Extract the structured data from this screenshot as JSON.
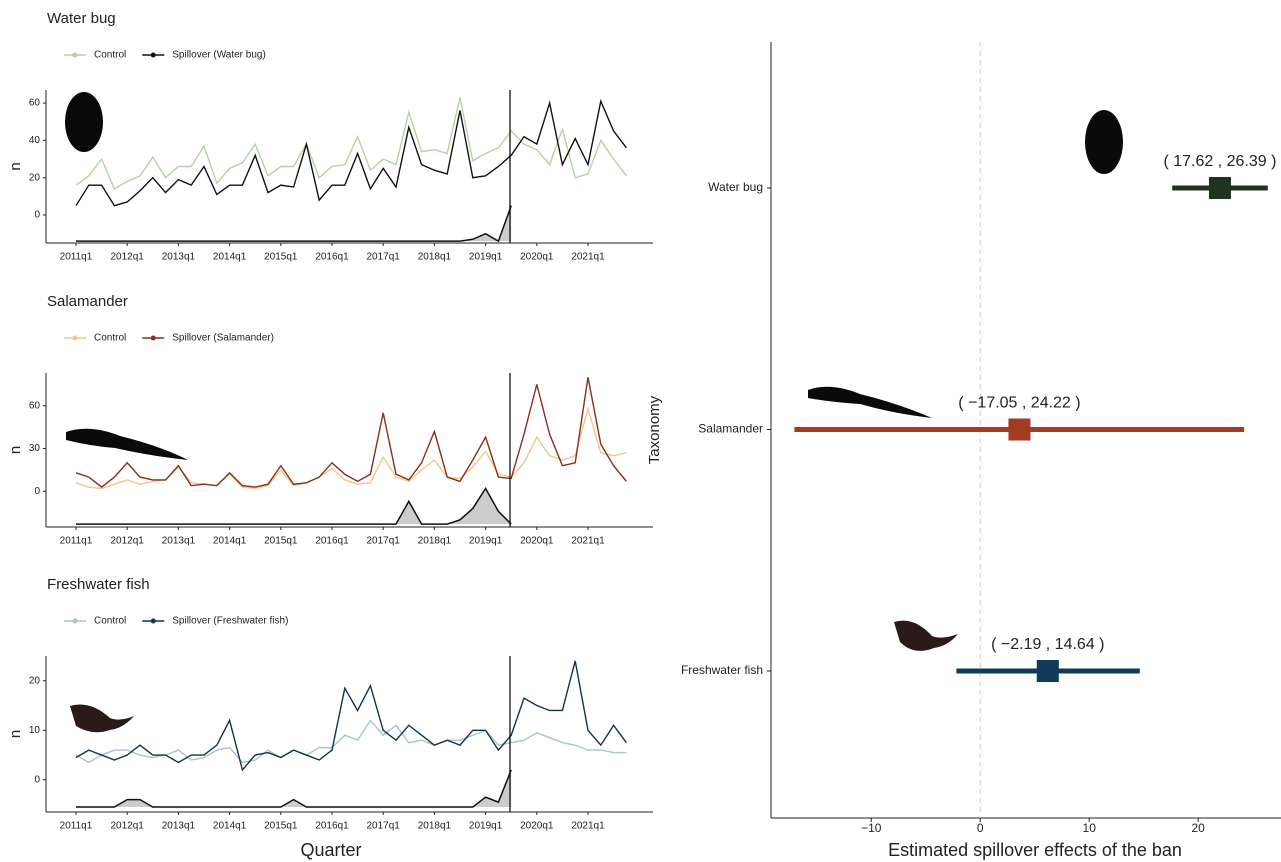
{
  "chart_data": [
    {
      "type": "line",
      "title": "Water bug",
      "y_label": "n",
      "categories": [
        "2011q1",
        null,
        null,
        null,
        "2012q1",
        null,
        null,
        null,
        "2013q1",
        null,
        null,
        null,
        "2014q1",
        null,
        null,
        null,
        "2015q1",
        null,
        null,
        null,
        "2016q1",
        null,
        null,
        null,
        "2017q1",
        null,
        null,
        null,
        "2018q1",
        null,
        null,
        null,
        "2019q1",
        null,
        null,
        null,
        "2020q1",
        null,
        null,
        null,
        "2021q1",
        null,
        null,
        null
      ],
      "series": [
        {
          "name": "Control",
          "color": "#b5d3a0",
          "values": [
            16,
            21,
            30,
            14,
            18,
            21,
            31,
            20,
            26,
            26,
            37,
            17,
            25,
            28,
            38,
            21,
            26,
            26,
            38,
            20,
            26,
            27,
            42,
            24,
            30,
            27,
            55,
            34,
            35,
            33,
            63,
            29,
            33,
            36,
            45,
            38,
            35,
            27,
            46,
            20,
            22,
            40,
            30,
            21
          ]
        },
        {
          "name": "Spillover (Water bug)",
          "color": "#111111",
          "values": [
            5,
            16,
            16,
            5,
            7,
            13,
            20,
            12,
            19,
            16,
            26,
            11,
            16,
            16,
            32,
            12,
            16,
            15,
            38,
            8,
            16,
            16,
            33,
            14,
            25,
            15,
            47,
            27,
            24,
            22,
            56,
            20,
            21,
            26,
            32,
            42,
            38,
            60,
            27,
            41,
            27,
            61,
            45,
            36
          ]
        }
      ],
      "area": {
        "color": "#cccccc",
        "values": [
          -14,
          -14,
          -14,
          -14,
          -14,
          -14,
          -14,
          -14,
          -14,
          -14,
          -14,
          -14,
          -14,
          -14,
          -14,
          -14,
          -14,
          -14,
          -14,
          -14,
          -14,
          -14,
          -14,
          -14,
          -14,
          -14,
          -14,
          -14,
          -14,
          -14,
          -14,
          -13,
          -10,
          -14,
          5,
          null,
          null,
          null,
          null,
          null,
          null,
          null,
          null,
          null
        ]
      },
      "ylim": [
        -15,
        67
      ],
      "yticks": [
        0,
        20,
        40,
        60
      ]
    },
    {
      "type": "line",
      "title": "Salamander",
      "y_label": "n",
      "categories": [
        "2011q1",
        null,
        null,
        null,
        "2012q1",
        null,
        null,
        null,
        "2013q1",
        null,
        null,
        null,
        "2014q1",
        null,
        null,
        null,
        "2015q1",
        null,
        null,
        null,
        "2016q1",
        null,
        null,
        null,
        "2017q1",
        null,
        null,
        null,
        "2018q1",
        null,
        null,
        null,
        "2019q1",
        null,
        null,
        null,
        "2020q1",
        null,
        null,
        null,
        "2021q1",
        null,
        null,
        null
      ],
      "series": [
        {
          "name": "Control",
          "color": "#f2c68f",
          "values": [
            6,
            3,
            2,
            5,
            8,
            5,
            7,
            8,
            17,
            6,
            5,
            4,
            12,
            3,
            2,
            4,
            15,
            4,
            6,
            10,
            16,
            8,
            5,
            6,
            24,
            10,
            7,
            15,
            22,
            10,
            9,
            17,
            28,
            12,
            10,
            20,
            38,
            25,
            22,
            25,
            58,
            27,
            25,
            27
          ]
        },
        {
          "name": "Spillover (Salamander)",
          "color": "#8b2e1a",
          "values": [
            13,
            10,
            3,
            10,
            20,
            10,
            8,
            8,
            18,
            4,
            5,
            4,
            13,
            4,
            3,
            5,
            18,
            5,
            6,
            10,
            20,
            12,
            7,
            12,
            55,
            12,
            8,
            20,
            42,
            10,
            7,
            22,
            38,
            10,
            9,
            40,
            75,
            40,
            18,
            20,
            80,
            33,
            18,
            7
          ]
        }
      ],
      "area": {
        "color": "#cccccc",
        "values": [
          -23,
          -23,
          -23,
          -23,
          -23,
          -23,
          -23,
          -23,
          -23,
          -23,
          -23,
          -23,
          -23,
          -23,
          -23,
          -23,
          -23,
          -23,
          -23,
          -23,
          -23,
          -23,
          -23,
          -23,
          -23,
          -23,
          -7,
          -23,
          -23,
          -23,
          -20,
          -12,
          2,
          -14,
          -23,
          null,
          null,
          null,
          null,
          null,
          null,
          null,
          null,
          null
        ]
      },
      "ylim": [
        -25,
        83
      ],
      "yticks": [
        0,
        30,
        60
      ]
    },
    {
      "type": "line",
      "title": "Freshwater fish",
      "y_label": "n",
      "x_label": "Quarter",
      "categories": [
        "2011q1",
        null,
        null,
        null,
        "2012q1",
        null,
        null,
        null,
        "2013q1",
        null,
        null,
        null,
        "2014q1",
        null,
        null,
        null,
        "2015q1",
        null,
        null,
        null,
        "2016q1",
        null,
        null,
        null,
        "2017q1",
        null,
        null,
        null,
        "2018q1",
        null,
        null,
        null,
        "2019q1",
        null,
        null,
        null,
        "2020q1",
        null,
        null,
        null,
        "2021q1",
        null,
        null,
        null
      ],
      "series": [
        {
          "name": "Control",
          "color": "#a8c4cc",
          "values": [
            5,
            3.5,
            5,
            6,
            6,
            5,
            4.5,
            5,
            6,
            4,
            4.5,
            6,
            6.5,
            3.5,
            4,
            6,
            4.5,
            6,
            5,
            6.5,
            6.5,
            9,
            8,
            12,
            9,
            11,
            7.5,
            8,
            7,
            8,
            8,
            9,
            10,
            7,
            7.5,
            8,
            9.5,
            8.5,
            7.5,
            7,
            6,
            6,
            5.5,
            5.5
          ]
        },
        {
          "name": "Spillover (Freshwater fish)",
          "color": "#0f3350",
          "values": [
            4.5,
            6,
            5,
            4,
            5,
            7,
            5,
            5,
            3.5,
            5,
            5,
            7,
            12,
            2,
            5,
            5.5,
            4.5,
            6,
            5,
            4,
            6,
            18.5,
            14,
            19,
            10,
            8,
            11,
            9,
            7,
            8,
            7,
            10,
            10,
            6,
            9,
            16.5,
            15,
            14,
            14,
            24,
            10,
            7,
            11,
            7.5
          ]
        }
      ],
      "area": {
        "color": "#cccccc",
        "values": [
          -5.5,
          -5.5,
          -5.5,
          -5.5,
          -4,
          -4,
          -5.5,
          -5.5,
          -5.5,
          -5.5,
          -5.5,
          -5.5,
          -5.5,
          -5.5,
          -5.5,
          -5.5,
          -5.5,
          -4,
          -5.5,
          -5.5,
          -5.5,
          -5.5,
          -5.5,
          -5.5,
          -5.5,
          -5.5,
          -5.5,
          -5.5,
          -5.5,
          -5.5,
          -5.5,
          -5.5,
          -3.5,
          -4.5,
          2,
          null,
          null,
          null,
          null,
          null,
          null,
          null,
          null,
          null
        ]
      },
      "ylim": [
        -6.5,
        25
      ],
      "yticks": [
        0,
        10,
        20
      ]
    },
    {
      "type": "forest",
      "x_label": "Estimated spillover effects of the ban",
      "y_label": "Taxonomy",
      "categories": [
        "Water bug",
        "Salamander",
        "Freshwater fish"
      ],
      "colors": [
        "#1f3320",
        "#a33a22",
        "#123a5a"
      ],
      "values": [
        22.0,
        3.6,
        6.2
      ],
      "lower": [
        17.62,
        -17.05,
        -2.19
      ],
      "upper": [
        26.39,
        24.22,
        14.64
      ],
      "ci_labels": [
        "( 17.62 , 26.39 )",
        "( −17.05 , 24.22 )",
        "( −2.19 , 14.64 )"
      ],
      "xlim": [
        -19.2,
        27.6
      ],
      "xticks": [
        {
          "value": -10,
          "label": "−10"
        },
        0,
        10,
        20
      ]
    }
  ]
}
